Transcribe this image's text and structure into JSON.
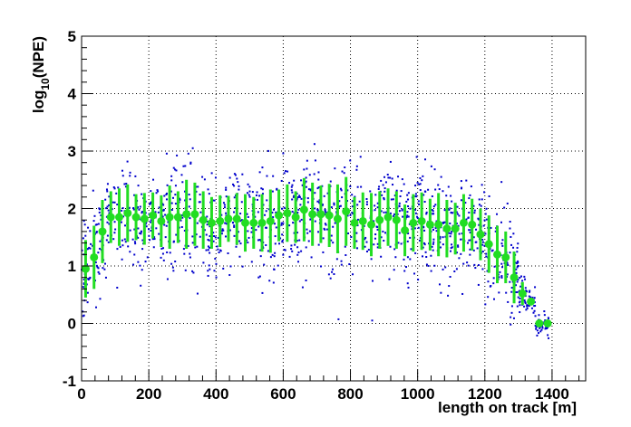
{
  "chart_data": {
    "type": "scatter",
    "title": "",
    "xlabel": "length on track [m]",
    "ylabel_base": "log",
    "ylabel_sub": "10",
    "ylabel_rest": "(NPE)",
    "xlim": [
      0,
      1500
    ],
    "ylim": [
      -1,
      5
    ],
    "x_major_ticks": [
      0,
      200,
      400,
      600,
      800,
      1000,
      1200,
      1400
    ],
    "x_tick_labels": [
      "0",
      "200",
      "400",
      "600",
      "800",
      "1000",
      "1200",
      "1400"
    ],
    "y_major_ticks": [
      -1,
      0,
      1,
      2,
      3,
      4,
      5
    ],
    "y_tick_labels": [
      "-1",
      "0",
      "1",
      "2",
      "3",
      "4",
      "5"
    ],
    "grid": true,
    "legend": "none",
    "colors": {
      "scatter": "#0000cc",
      "profile": "#22dd22"
    },
    "series": [
      {
        "kind": "profile",
        "x": [
          12,
          37,
          62,
          87,
          112,
          137,
          162,
          187,
          212,
          237,
          262,
          287,
          312,
          337,
          362,
          387,
          412,
          437,
          462,
          487,
          512,
          537,
          562,
          587,
          612,
          637,
          662,
          687,
          712,
          737,
          762,
          787,
          812,
          837,
          862,
          887,
          912,
          937,
          962,
          987,
          1012,
          1037,
          1062,
          1087,
          1112,
          1137,
          1162,
          1187,
          1212,
          1237,
          1262,
          1287,
          1312,
          1337,
          1362,
          1387
        ],
        "y": [
          0.95,
          1.15,
          1.6,
          1.85,
          1.85,
          1.92,
          1.85,
          1.82,
          1.88,
          1.78,
          1.85,
          1.85,
          1.9,
          1.9,
          1.8,
          1.75,
          1.78,
          1.82,
          1.82,
          1.75,
          1.75,
          1.75,
          1.78,
          1.88,
          1.92,
          1.85,
          1.98,
          1.9,
          1.9,
          1.88,
          1.82,
          1.95,
          1.75,
          1.78,
          1.72,
          1.8,
          1.85,
          1.8,
          1.62,
          1.75,
          1.78,
          1.72,
          1.72,
          1.65,
          1.65,
          1.75,
          1.72,
          1.55,
          1.38,
          1.2,
          1.15,
          0.8,
          0.52,
          0.38,
          0.0,
          0.0
        ],
        "yerr": [
          0.5,
          0.55,
          0.55,
          0.45,
          0.5,
          0.5,
          0.4,
          0.45,
          0.4,
          0.45,
          0.55,
          0.45,
          0.6,
          0.55,
          0.5,
          0.45,
          0.45,
          0.4,
          0.45,
          0.5,
          0.45,
          0.5,
          0.55,
          0.45,
          0.5,
          0.45,
          0.55,
          0.55,
          0.5,
          0.55,
          0.6,
          0.6,
          0.45,
          0.5,
          0.55,
          0.5,
          0.5,
          0.5,
          0.45,
          0.5,
          0.5,
          0.45,
          0.55,
          0.5,
          0.45,
          0.5,
          0.45,
          0.45,
          0.5,
          0.5,
          0.45,
          0.45,
          0.2,
          0.05,
          0.0,
          0.0
        ]
      }
    ]
  }
}
